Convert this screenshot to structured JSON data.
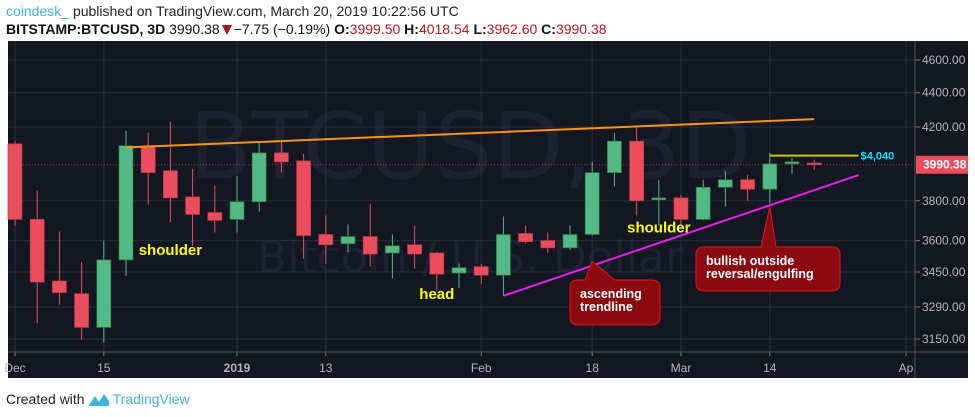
{
  "header": {
    "user": "coindesk_",
    "published": "published on TradingView.com, March 20, 2019 10:22:56 UTC",
    "symbol": "BITSTAMP:BTCUSD, 3D",
    "last": "3990.38",
    "change": "−7.75 (−0.19%)",
    "o_label": "O:",
    "o": "3999.50",
    "h_label": "H:",
    "h": "4018.54",
    "l_label": "L:",
    "l": "3962.60",
    "c_label": "C:",
    "c": "3990.38"
  },
  "footer": {
    "created_with": "Created with",
    "brand": "TradingView"
  },
  "colors": {
    "background": "#131722",
    "grid": "#2a2e39",
    "up": "#53b987",
    "down": "#eb4d5c",
    "resistance": "#f7931a",
    "trendline": "#e91ee9",
    "target": "#c8c800",
    "callout": "#8b0a10",
    "label": "#ffff00"
  },
  "chart_data": {
    "type": "candlestick",
    "y_scale": "log",
    "ylim": [
      3080,
      4800
    ],
    "watermark": {
      "symbol": "BTCUSD, 3D",
      "description": "Bitcoin / U.S. Dollar"
    },
    "y_ticks": [
      "4600.00",
      "4400.00",
      "4200.00",
      "3800.00",
      "3600.00",
      "3450.00",
      "3290.00",
      "3150.00"
    ],
    "y_tick_values": [
      4600,
      4400,
      4200,
      3800,
      3600,
      3450,
      3290,
      3150
    ],
    "x_ticks": [
      "Dec",
      "15",
      "2019",
      "13",
      "Feb",
      "18",
      "Mar",
      "14",
      "Ap"
    ],
    "x_tick_candle_index": [
      0,
      4,
      10,
      14,
      21,
      26,
      30,
      34,
      40
    ],
    "last_price_label": "3990.38",
    "last_price": 3990.38,
    "candles": [
      [
        4105,
        4120,
        3672,
        3705
      ],
      [
        3705,
        3853,
        3218,
        3403
      ],
      [
        3408,
        3645,
        3300,
        3355
      ],
      [
        3350,
        3497,
        3147,
        3200
      ],
      [
        3200,
        3600,
        3135,
        3507
      ],
      [
        3507,
        4178,
        3432,
        4095
      ],
      [
        4095,
        4167,
        3780,
        3948
      ],
      [
        3958,
        4230,
        3690,
        3815
      ],
      [
        3820,
        3969,
        3575,
        3730
      ],
      [
        3740,
        3880,
        3640,
        3700
      ],
      [
        3705,
        3930,
        3640,
        3795
      ],
      [
        3795,
        4110,
        3745,
        4055
      ],
      [
        4055,
        4115,
        3948,
        4006
      ],
      [
        4011,
        4050,
        3512,
        3625
      ],
      [
        3630,
        3725,
        3488,
        3580
      ],
      [
        3585,
        3680,
        3545,
        3620
      ],
      [
        3620,
        3785,
        3475,
        3535
      ],
      [
        3540,
        3630,
        3420,
        3575
      ],
      [
        3580,
        3675,
        3465,
        3535
      ],
      [
        3540,
        3545,
        3360,
        3440
      ],
      [
        3445,
        3490,
        3375,
        3470
      ],
      [
        3475,
        3488,
        3395,
        3435
      ],
      [
        3435,
        3720,
        3340,
        3630
      ],
      [
        3635,
        3675,
        3585,
        3595
      ],
      [
        3600,
        3640,
        3540,
        3565
      ],
      [
        3565,
        3675,
        3555,
        3630
      ],
      [
        3630,
        4006,
        3625,
        3948
      ],
      [
        3948,
        4167,
        3875,
        4120
      ],
      [
        4120,
        4200,
        3725,
        3800
      ],
      [
        3805,
        3910,
        3675,
        3815
      ],
      [
        3815,
        3830,
        3680,
        3705
      ],
      [
        3705,
        3910,
        3700,
        3870
      ],
      [
        3870,
        3958,
        3770,
        3910
      ],
      [
        3910,
        3935,
        3800,
        3860
      ],
      [
        3860,
        4055,
        3785,
        3995
      ],
      [
        3995,
        4025,
        3942,
        4006
      ],
      [
        3999.5,
        4018.54,
        3962.6,
        3990.38
      ]
    ],
    "lines": [
      {
        "name": "resistance",
        "from": [
          5,
          4085
        ],
        "to": [
          36,
          4245
        ]
      },
      {
        "name": "ascending-trendline",
        "from": [
          22,
          3340
        ],
        "to": [
          38,
          3935
        ]
      },
      {
        "name": "target",
        "from": [
          34,
          4040
        ],
        "to": [
          38,
          4040
        ],
        "label": "$4,040"
      }
    ],
    "annotations": [
      {
        "text": "shoulder",
        "candle": 7,
        "price": 3530
      },
      {
        "text": "head",
        "candle": 19,
        "price": 3325
      },
      {
        "text": "shoulder",
        "candle": 29,
        "price": 3640
      }
    ],
    "callouts": [
      {
        "lines": [
          "ascending",
          "trendline"
        ],
        "points_to_candle": 26,
        "points_to_price": 3500
      },
      {
        "lines": [
          "bullish outside",
          "reversal/engulfing"
        ],
        "points_to_candle": 34,
        "points_to_price": 3770
      }
    ]
  }
}
